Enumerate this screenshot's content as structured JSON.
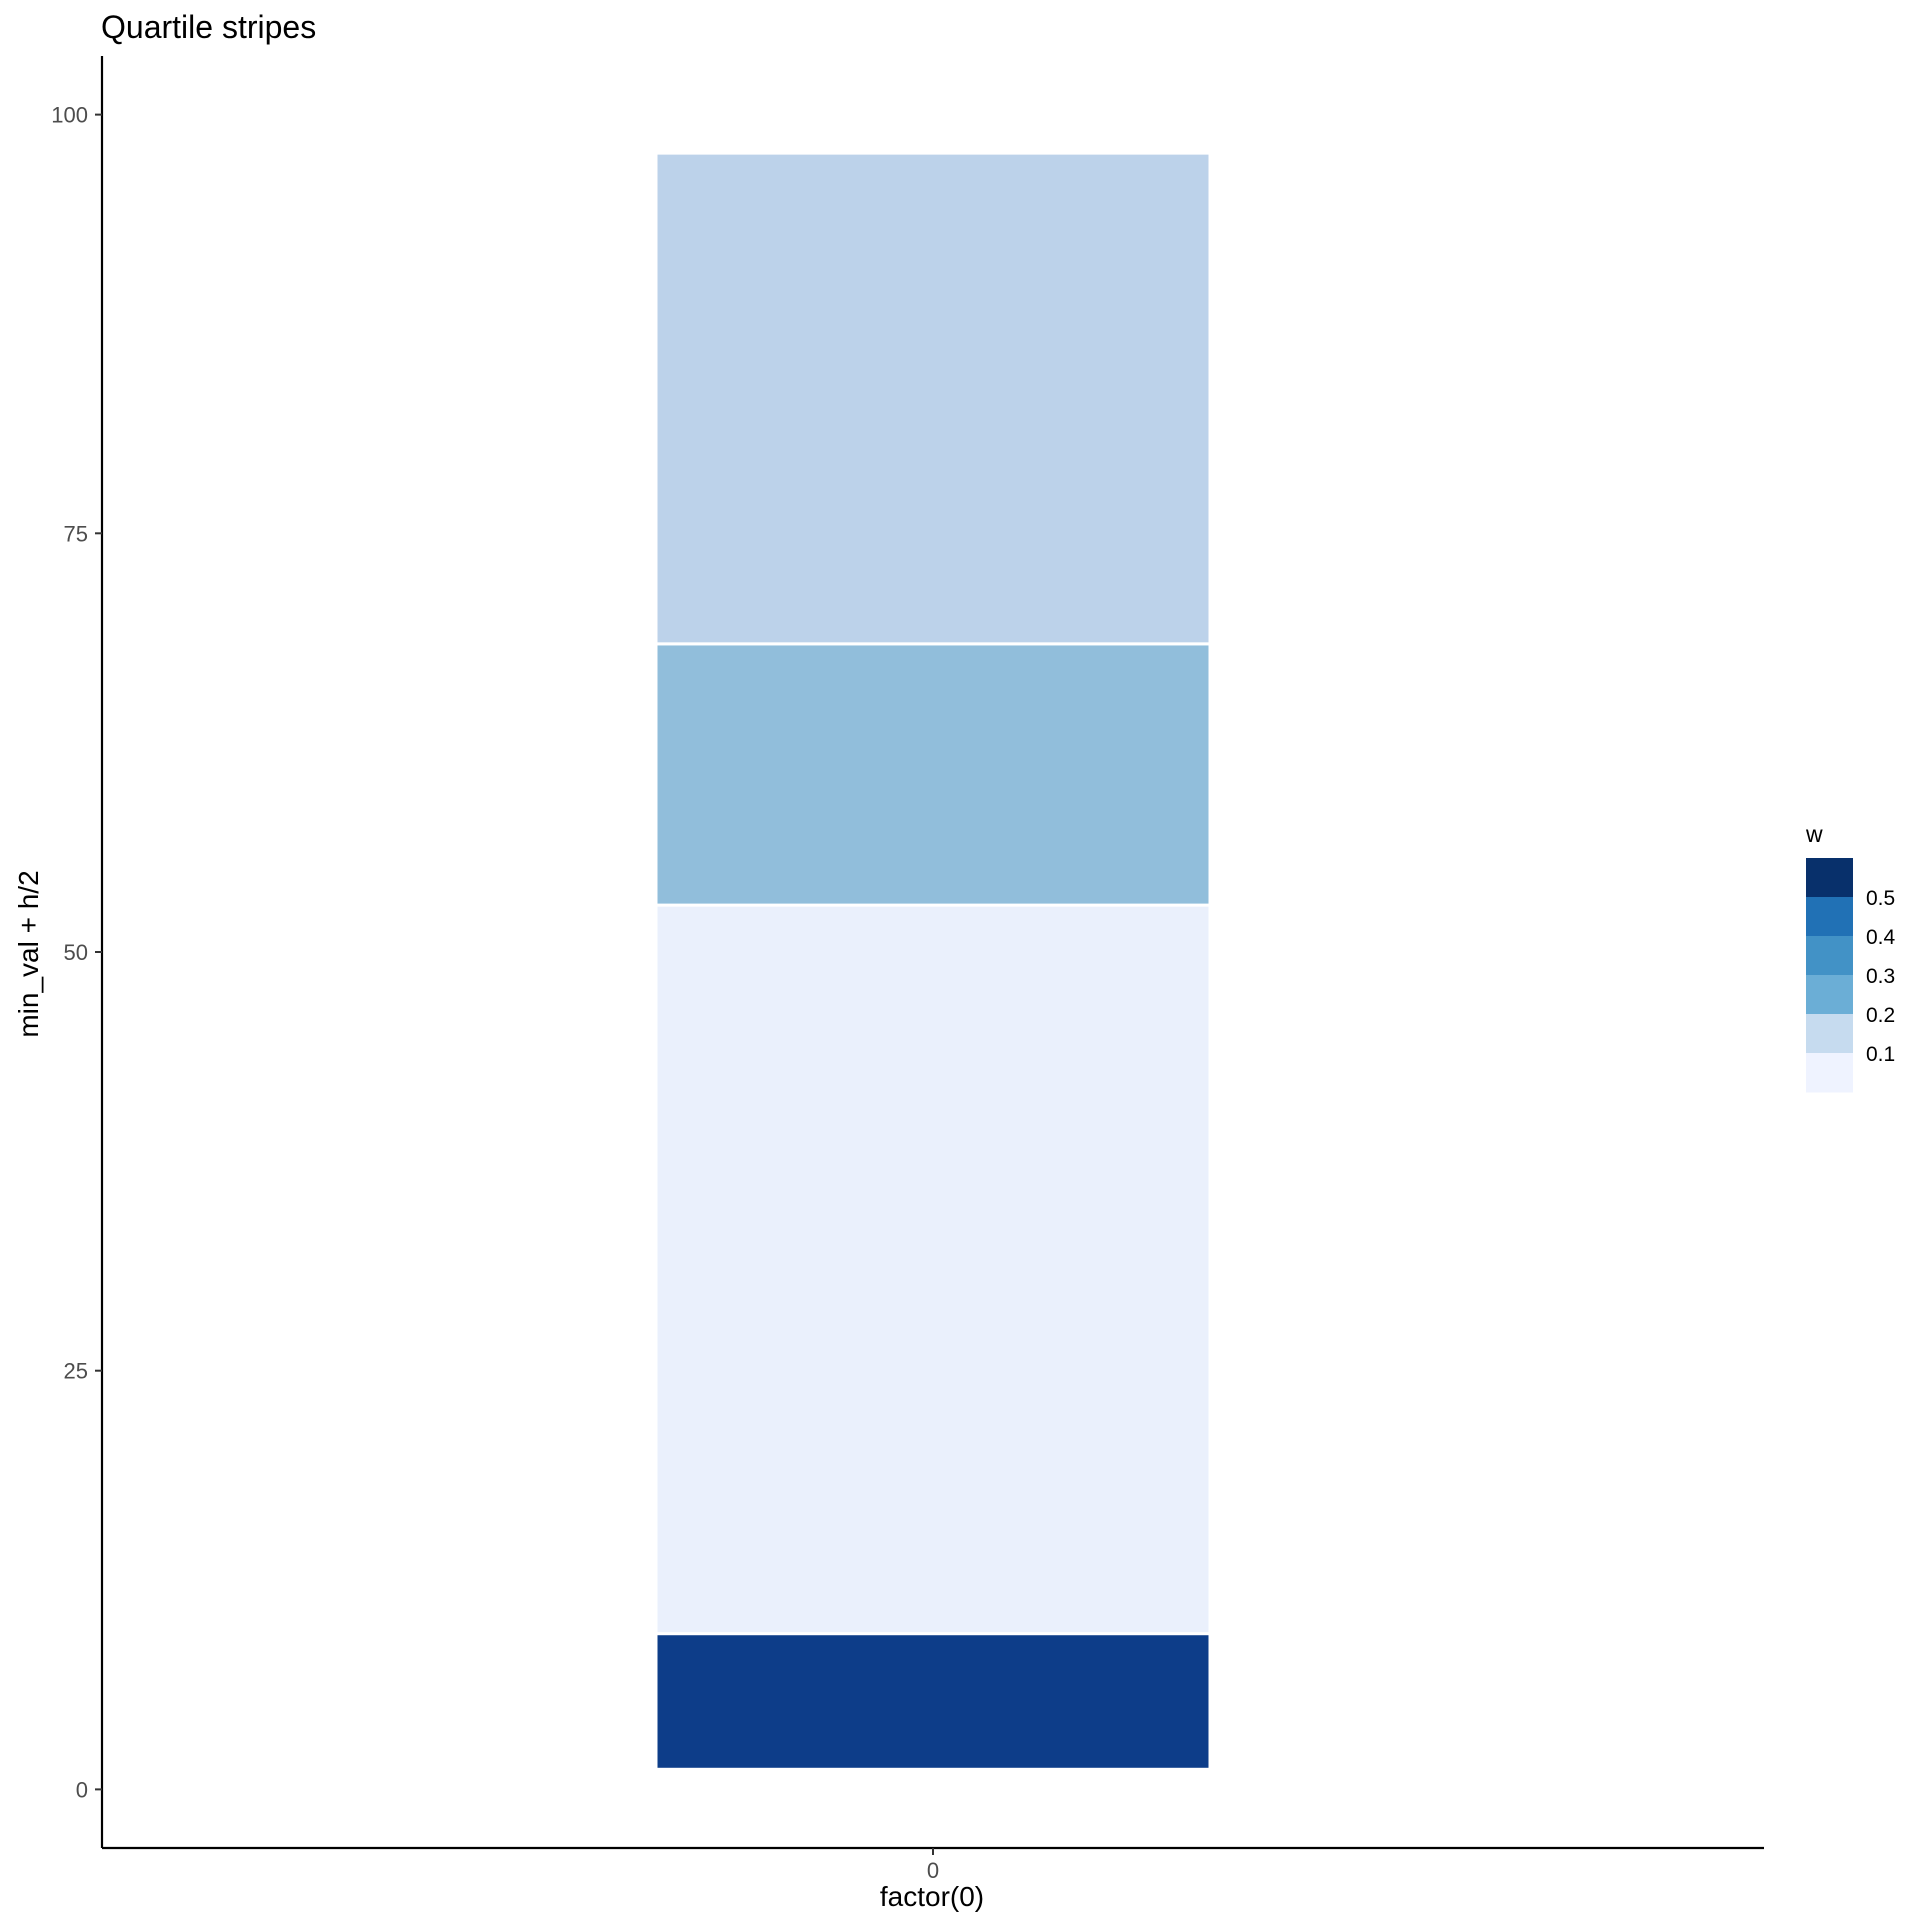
{
  "chart_data": {
    "type": "bar",
    "title": "Quartile stripes",
    "xlabel": "factor(0)",
    "ylabel": "min_val + h/2",
    "categories": [
      "0"
    ],
    "ylim": [
      -3.5,
      103.5
    ],
    "yticks": [
      0,
      25,
      50,
      75,
      100
    ],
    "grid": false,
    "legend": {
      "title": "w",
      "placement": "right",
      "breaks": [
        0.5,
        0.4,
        0.3,
        0.2,
        0.1
      ],
      "colors": [
        "#08306B",
        "#2171B5",
        "#4292C6",
        "#6BAED6",
        "#C6DBEF",
        "#EFF3FF"
      ]
    },
    "stripes": [
      {
        "ymin": 1.2,
        "ymax": 9.3,
        "w": 0.52,
        "color": "#0D3D89"
      },
      {
        "ymin": 9.3,
        "ymax": 52.8,
        "w": 0.04,
        "color": "#EAF0FC"
      },
      {
        "ymin": 52.8,
        "ymax": 68.4,
        "w": 0.22,
        "color": "#91BEDB"
      },
      {
        "ymin": 68.4,
        "ymax": 97.7,
        "w": 0.14,
        "color": "#BCD2EA"
      }
    ]
  }
}
